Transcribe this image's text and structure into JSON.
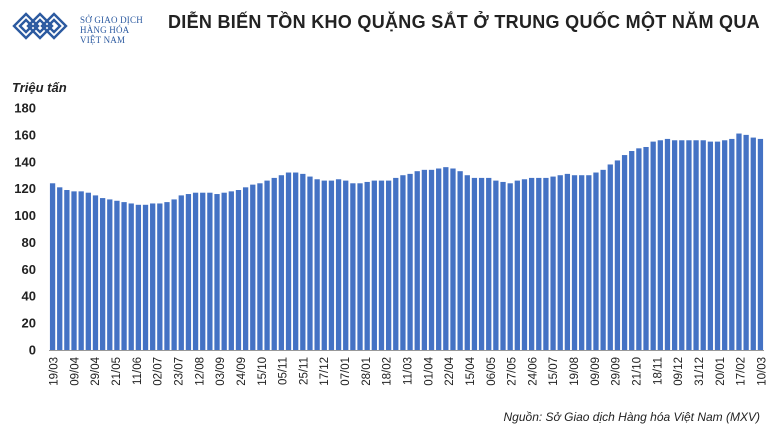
{
  "brand": {
    "name_lines": [
      "SỞ GIAO DỊCH",
      "HÀNG HÓA",
      "VIỆT NAM"
    ],
    "color": "#2c5aa0"
  },
  "title": "DIỄN BIẾN TỒN KHO QUẶNG SẮT Ở TRUNG QUỐC MỘT NĂM QUA",
  "source": "Nguồn: Sở Giao dịch Hàng hóa Việt Nam (MXV)",
  "chart_data": {
    "type": "bar",
    "title": "DIỄN BIẾN TỒN KHO QUẶNG SẮT Ở TRUNG QUỐC MỘT NĂM QUA",
    "ylabel": "Triệu tấn",
    "xlabel": "",
    "ylim": [
      0,
      180
    ],
    "yticks": [
      0,
      20,
      40,
      60,
      80,
      100,
      120,
      140,
      160,
      180
    ],
    "grid": false,
    "legend": "none",
    "bar_color": "#4472c4",
    "x_tick_labels": [
      "19/03",
      "09/04",
      "29/04",
      "21/05",
      "11/06",
      "02/07",
      "23/07",
      "12/08",
      "03/09",
      "24/09",
      "15/10",
      "05/11",
      "25/11",
      "17/12",
      "07/01",
      "28/01",
      "18/02",
      "11/03",
      "01/04",
      "22/04",
      "15/04",
      "06/05",
      "27/05",
      "24/06",
      "15/07",
      "19/08",
      "09/09",
      "29/09",
      "21/10",
      "18/11",
      "09/12",
      "31/12",
      "20/01",
      "17/02",
      "10/03"
    ],
    "values": [
      124,
      121,
      119,
      118,
      118,
      117,
      115,
      113,
      112,
      111,
      110,
      109,
      108,
      108,
      109,
      109,
      110,
      112,
      115,
      116,
      117,
      117,
      117,
      116,
      117,
      118,
      119,
      121,
      123,
      124,
      126,
      128,
      130,
      132,
      132,
      131,
      129,
      127,
      126,
      126,
      127,
      126,
      124,
      124,
      125,
      126,
      126,
      126,
      128,
      130,
      131,
      133,
      134,
      134,
      135,
      136,
      135,
      133,
      130,
      128,
      128,
      128,
      126,
      125,
      124,
      126,
      127,
      128,
      128,
      128,
      129,
      130,
      131,
      130,
      130,
      130,
      132,
      134,
      138,
      141,
      145,
      148,
      150,
      151,
      155,
      156,
      157,
      156,
      156,
      156,
      156,
      156,
      155,
      155,
      156,
      157,
      161,
      160,
      158,
      157
    ]
  }
}
